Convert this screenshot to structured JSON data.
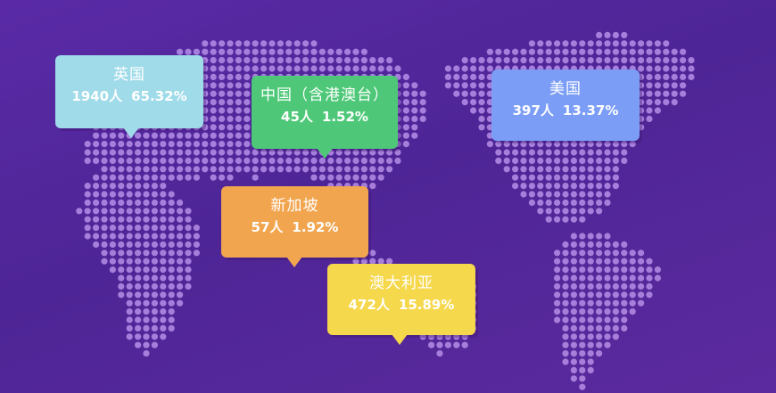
{
  "colors": {
    "background": "#55289e",
    "dot": "#b58ee6"
  },
  "callouts": [
    {
      "id": "uk",
      "name": "英国",
      "count": "1940人",
      "percent": "65.32%",
      "count_value": 1940,
      "percent_value": 65.32,
      "color": "#9fdbe8"
    },
    {
      "id": "china",
      "name": "中国（含港澳台）",
      "count": "45人",
      "percent": "1.52%",
      "count_value": 45,
      "percent_value": 1.52,
      "color": "#4ec878"
    },
    {
      "id": "usa",
      "name": "美国",
      "count": "397人",
      "percent": "13.37%",
      "count_value": 397,
      "percent_value": 13.37,
      "color": "#7b9df5"
    },
    {
      "id": "singapore",
      "name": "新加坡",
      "count": "57人",
      "percent": "1.92%",
      "count_value": 57,
      "percent_value": 1.92,
      "color": "#f2a54f"
    },
    {
      "id": "australia",
      "name": "澳大利亚",
      "count": "472人",
      "percent": "15.89%",
      "count_value": 472,
      "percent_value": 15.89,
      "color": "#f6d84d"
    }
  ]
}
